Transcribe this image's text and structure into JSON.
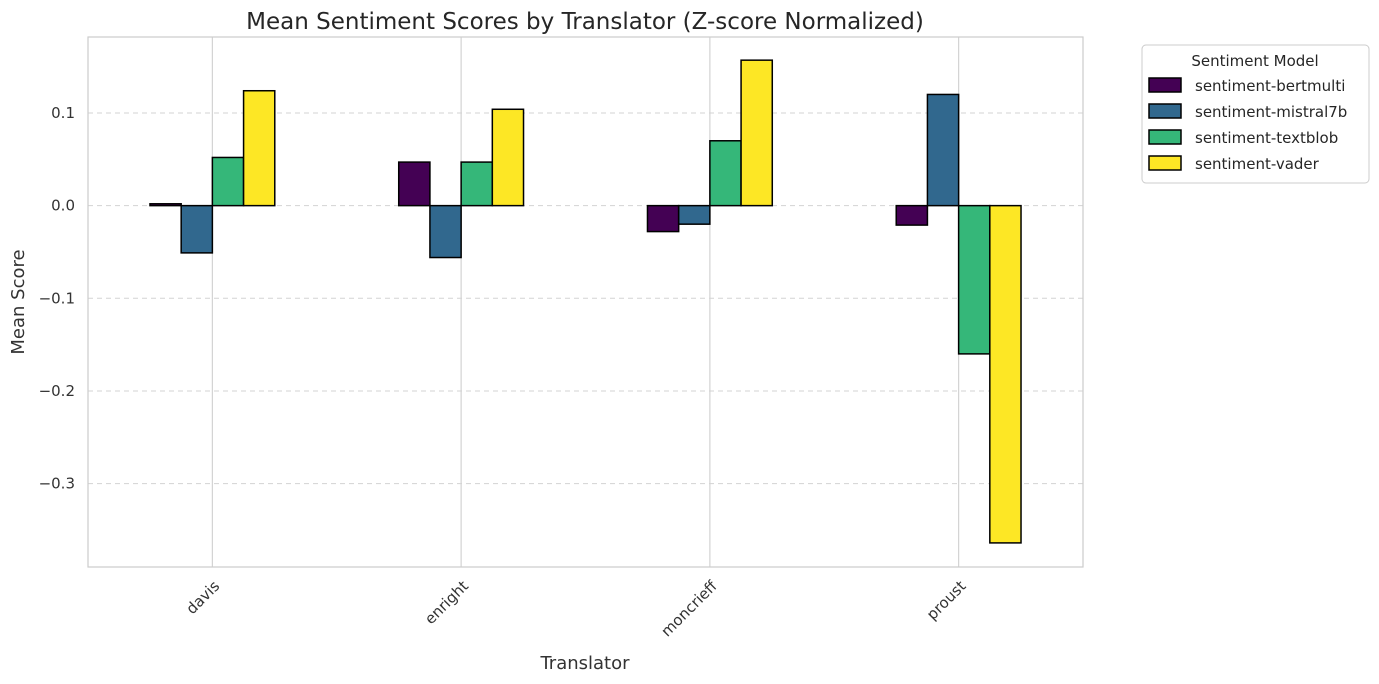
{
  "chart_data": {
    "type": "bar",
    "title": "Mean Sentiment Scores by Translator (Z-score Normalized)",
    "xlabel": "Translator",
    "ylabel": "Mean Score",
    "categories": [
      "davis",
      "enright",
      "moncrieff",
      "proust"
    ],
    "series": [
      {
        "name": "sentiment-bertmulti",
        "color": "#440154",
        "values": [
          0.002,
          0.047,
          -0.028,
          -0.021
        ]
      },
      {
        "name": "sentiment-mistral7b",
        "color": "#31688e",
        "values": [
          -0.051,
          -0.056,
          -0.02,
          0.12
        ]
      },
      {
        "name": "sentiment-textblob",
        "color": "#35b779",
        "values": [
          0.052,
          0.047,
          0.07,
          -0.16
        ]
      },
      {
        "name": "sentiment-vader",
        "color": "#fde725",
        "values": [
          0.124,
          0.104,
          0.157,
          -0.364
        ]
      }
    ],
    "ylim": [
      -0.39,
      0.182
    ],
    "yticks": [
      0.1,
      0.0,
      -0.1,
      -0.2,
      -0.3
    ],
    "ytick_labels": [
      "0.1",
      "0.0",
      "−0.1",
      "−0.2",
      "−0.3"
    ],
    "grid": true,
    "legend": {
      "title": "Sentiment Model",
      "placement": "outside-top-right"
    }
  }
}
